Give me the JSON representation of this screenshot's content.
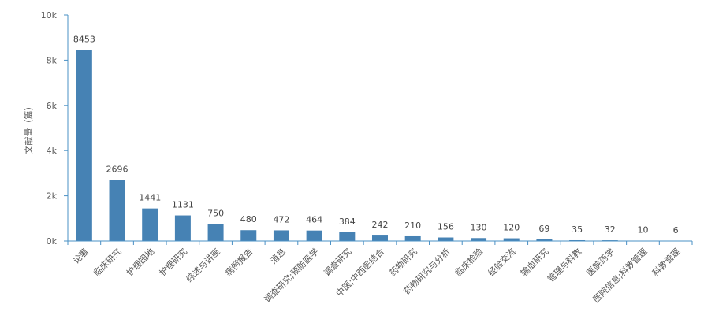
{
  "chart_data": {
    "type": "bar",
    "ylabel": "文献量（篇）",
    "ylim": [
      0,
      10000
    ],
    "yticks": [
      0,
      2000,
      4000,
      6000,
      8000,
      10000
    ],
    "ytick_labels": [
      "0k",
      "2k",
      "4k",
      "6k",
      "8k",
      "10k"
    ],
    "categories": [
      "论著",
      "临床研究",
      "护理园地",
      "护理研究",
      "综述与讲座",
      "病例报告",
      "消息",
      "调查研究;预防医学",
      "调查研究",
      "中医;中西医结合",
      "药物研究",
      "药物研究与分析",
      "临床检验",
      "经验交流",
      "输血研究",
      "管理与科教",
      "医院药学",
      "医院信息;科教管理",
      "科教管理"
    ],
    "values": [
      8453,
      2696,
      1441,
      1131,
      750,
      480,
      472,
      464,
      384,
      242,
      210,
      156,
      130,
      120,
      69,
      35,
      32,
      10,
      6
    ],
    "bar_color": "#4682b4",
    "grid": false,
    "legend": "none"
  }
}
